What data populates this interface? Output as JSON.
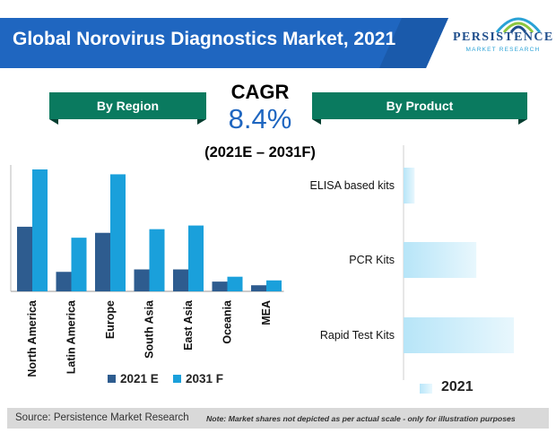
{
  "title": "Global Norovirus Diagnostics Market, 2021",
  "logo": {
    "name": "PERSISTENCE",
    "sub": "MARKET RESEARCH"
  },
  "section_headers": {
    "region": "By Region",
    "product": "By Product"
  },
  "cagr": {
    "label": "CAGR",
    "value": "8.4%",
    "period": "(2021E – 2031F)"
  },
  "colors": {
    "banner": "#1f66c0",
    "header_green": "#0a7a5f",
    "series_2021": "#2e5c8f",
    "series_2031": "#1aa0db",
    "product_bar": "#c9ecfb"
  },
  "chart_data": [
    {
      "type": "bar",
      "categories": [
        "North America",
        "Latin America",
        "Europe",
        "South Asia",
        "East Asia",
        "Oceania",
        "MEA"
      ],
      "series": [
        {
          "name": "2021 E",
          "values": [
            53,
            16,
            48,
            18,
            18,
            8,
            5
          ]
        },
        {
          "name": "2031 F",
          "values": [
            100,
            44,
            96,
            51,
            54,
            12,
            9
          ]
        }
      ],
      "ylim": [
        0,
        100
      ],
      "legend": "bottom",
      "note": "relative scale, no numeric axis shown"
    },
    {
      "type": "bar",
      "orientation": "horizontal",
      "categories": [
        "ELISA based kits",
        "PCR Kits",
        "Rapid Test Kits"
      ],
      "series": [
        {
          "name": "2021",
          "values": [
            10,
            66,
            100
          ]
        }
      ],
      "xlim": [
        0,
        100
      ],
      "legend": "bottom",
      "note": "relative scale, no numeric axis shown"
    }
  ],
  "footer": {
    "source": "Source: Persistence Market Research",
    "note": "Note: Market shares not depicted as per actual scale - only for illustration purposes"
  }
}
